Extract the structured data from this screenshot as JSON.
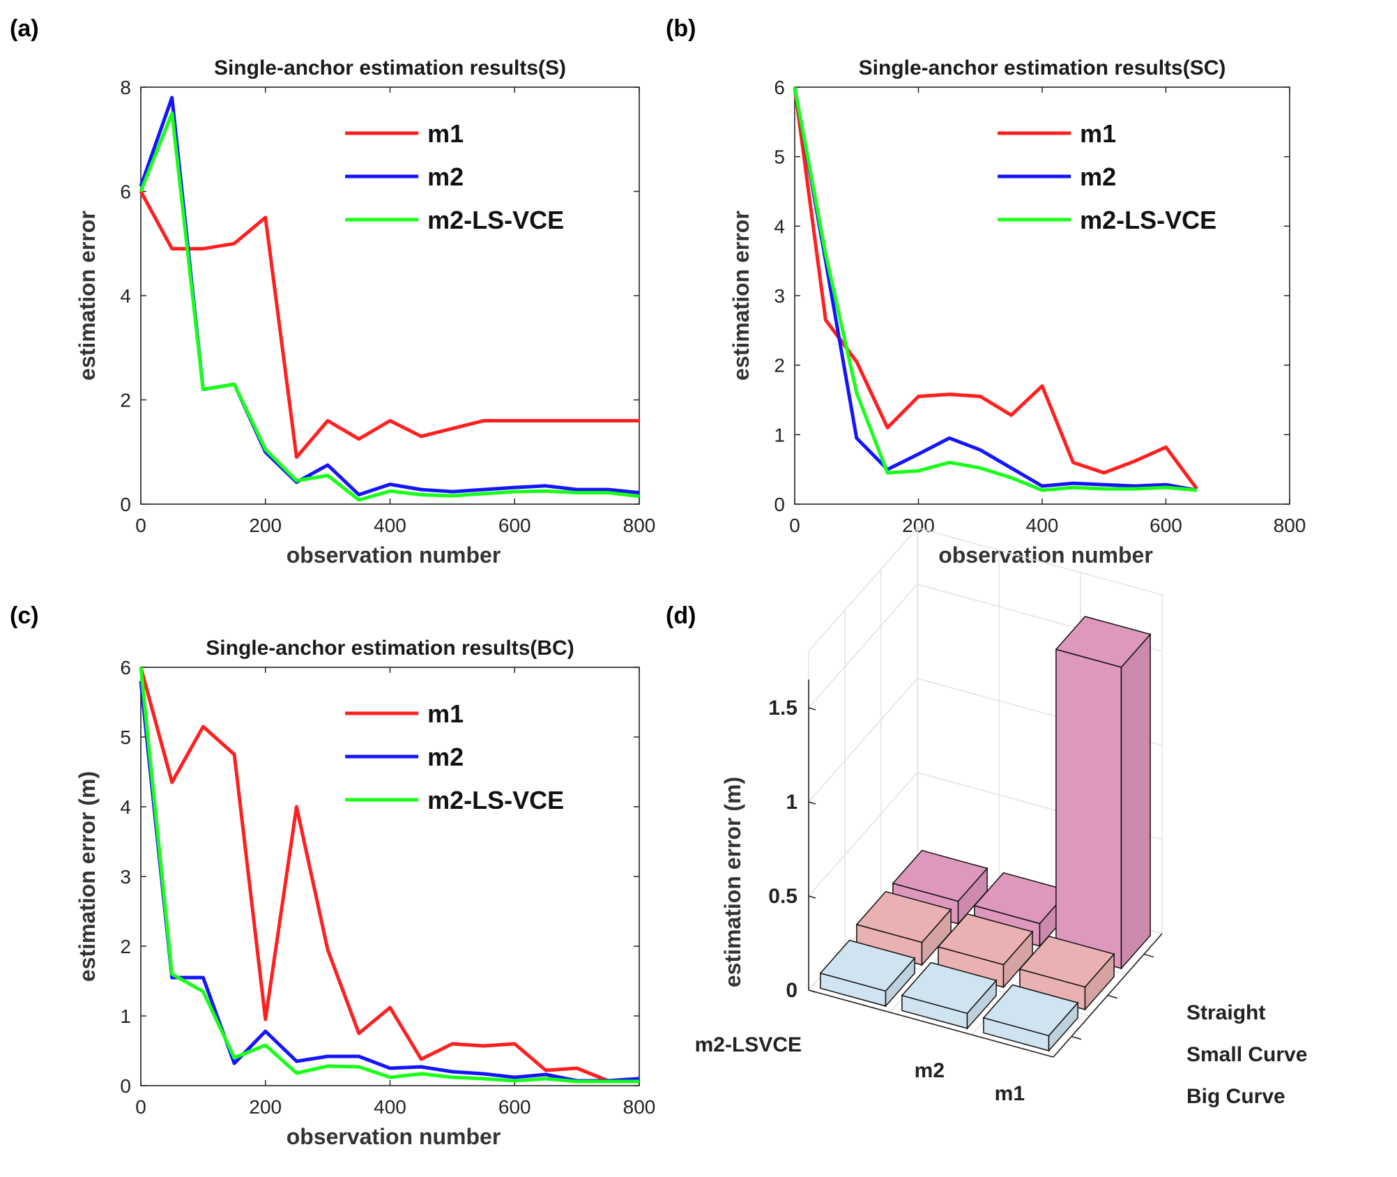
{
  "panels": {
    "a": "(a)",
    "b": "(b)",
    "c": "(c)",
    "d": "(d)"
  },
  "colors": {
    "m1": "#ff1f1f",
    "m2": "#1414ff",
    "m2_ls_vce": "#19ff19",
    "big_curve": "#cfe3f0",
    "small_curve": "#e9b1b1",
    "straight": "#de97bd"
  },
  "chart_data": [
    {
      "id": "a",
      "type": "line",
      "title": "Single-anchor estimation results(S)",
      "xlabel": "observation number",
      "ylabel": "estimation error",
      "xlim": [
        0,
        800
      ],
      "ylim": [
        0,
        8
      ],
      "xticks": [
        0,
        200,
        400,
        600,
        800
      ],
      "yticks": [
        0,
        2,
        4,
        6,
        8
      ],
      "legend_position": "top-right",
      "series": [
        {
          "name": "m1",
          "x": [
            0,
            50,
            100,
            150,
            200,
            250,
            300,
            350,
            400,
            450,
            500,
            550,
            600,
            650,
            700,
            750,
            800
          ],
          "values": [
            6.0,
            4.9,
            4.9,
            5.0,
            5.5,
            0.9,
            1.6,
            1.25,
            1.6,
            1.3,
            1.45,
            1.6,
            1.6,
            1.6,
            1.6,
            1.6,
            1.6
          ]
        },
        {
          "name": "m2",
          "x": [
            0,
            50,
            100,
            150,
            200,
            250,
            300,
            350,
            400,
            450,
            500,
            550,
            600,
            650,
            700,
            750,
            800
          ],
          "values": [
            6.1,
            7.8,
            2.2,
            2.3,
            1.0,
            0.42,
            0.75,
            0.18,
            0.38,
            0.28,
            0.24,
            0.28,
            0.32,
            0.35,
            0.28,
            0.28,
            0.22
          ]
        },
        {
          "name": "m2-LS-VCE",
          "x": [
            0,
            50,
            100,
            150,
            200,
            250,
            300,
            350,
            400,
            450,
            500,
            550,
            600,
            650,
            700,
            750,
            800
          ],
          "values": [
            6.0,
            7.5,
            2.2,
            2.3,
            1.05,
            0.45,
            0.55,
            0.08,
            0.25,
            0.18,
            0.16,
            0.2,
            0.24,
            0.25,
            0.22,
            0.22,
            0.15
          ]
        }
      ]
    },
    {
      "id": "b",
      "type": "line",
      "title": "Single-anchor estimation results(SC)",
      "xlabel": "observation number",
      "ylabel": "estimation error",
      "xlim": [
        0,
        800
      ],
      "ylim": [
        0,
        6
      ],
      "xticks": [
        0,
        200,
        400,
        600,
        800
      ],
      "yticks": [
        0,
        1,
        2,
        3,
        4,
        5,
        6
      ],
      "legend_position": "top-right",
      "series": [
        {
          "name": "m1",
          "x": [
            0,
            50,
            100,
            150,
            200,
            250,
            300,
            350,
            400,
            450,
            500,
            550,
            600,
            650
          ],
          "values": [
            6.0,
            2.65,
            2.05,
            1.1,
            1.55,
            1.58,
            1.55,
            1.28,
            1.7,
            0.6,
            0.45,
            0.62,
            0.82,
            0.22
          ]
        },
        {
          "name": "m2",
          "x": [
            0,
            50,
            100,
            150,
            200,
            250,
            300,
            350,
            400,
            450,
            500,
            550,
            600,
            650
          ],
          "values": [
            6.0,
            3.5,
            0.95,
            0.5,
            0.72,
            0.95,
            0.78,
            0.52,
            0.26,
            0.3,
            0.28,
            0.26,
            0.28,
            0.2
          ]
        },
        {
          "name": "m2-LS-VCE",
          "x": [
            0,
            50,
            100,
            150,
            200,
            250,
            300,
            350,
            400,
            450,
            500,
            550,
            600,
            650
          ],
          "values": [
            6.0,
            3.6,
            1.6,
            0.45,
            0.48,
            0.6,
            0.52,
            0.38,
            0.2,
            0.24,
            0.22,
            0.22,
            0.24,
            0.2
          ]
        }
      ]
    },
    {
      "id": "c",
      "type": "line",
      "title": "Single-anchor estimation results(BC)",
      "xlabel": "observation number",
      "ylabel": "estimation error (m)",
      "xlim": [
        0,
        800
      ],
      "ylim": [
        0,
        6
      ],
      "xticks": [
        0,
        200,
        400,
        600,
        800
      ],
      "yticks": [
        0,
        1,
        2,
        3,
        4,
        5,
        6
      ],
      "legend_position": "top-right",
      "series": [
        {
          "name": "m1",
          "x": [
            0,
            50,
            100,
            150,
            200,
            250,
            300,
            350,
            400,
            450,
            500,
            550,
            600,
            650,
            700,
            750,
            800
          ],
          "values": [
            6.0,
            4.35,
            5.15,
            4.75,
            0.95,
            4.0,
            1.95,
            0.75,
            1.12,
            0.38,
            0.6,
            0.57,
            0.6,
            0.22,
            0.25,
            0.07,
            0.1
          ]
        },
        {
          "name": "m2",
          "x": [
            0,
            50,
            100,
            150,
            200,
            250,
            300,
            350,
            400,
            450,
            500,
            550,
            600,
            650,
            700,
            750,
            800
          ],
          "values": [
            5.8,
            1.55,
            1.55,
            0.32,
            0.78,
            0.35,
            0.42,
            0.42,
            0.25,
            0.27,
            0.2,
            0.17,
            0.12,
            0.16,
            0.07,
            0.07,
            0.1
          ]
        },
        {
          "name": "m2-LS-VCE",
          "x": [
            0,
            50,
            100,
            150,
            200,
            250,
            300,
            350,
            400,
            450,
            500,
            550,
            600,
            650,
            700,
            750,
            800
          ],
          "values": [
            6.0,
            1.6,
            1.35,
            0.4,
            0.58,
            0.18,
            0.28,
            0.27,
            0.12,
            0.17,
            0.12,
            0.1,
            0.07,
            0.1,
            0.06,
            0.06,
            0.06
          ]
        }
      ]
    },
    {
      "id": "d",
      "type": "bar",
      "mode": "3d",
      "ylabel": "estimation error (m)",
      "zticks": [
        "0",
        "0.5",
        "1",
        "1.5"
      ],
      "zlim": [
        0,
        1.8
      ],
      "methods": [
        "m2-LSVCE",
        "m2",
        "m1"
      ],
      "scenarios": [
        "Big Curve",
        "Small Curve",
        "Straight"
      ],
      "values": {
        "Big Curve": [
          0.08,
          0.08,
          0.08
        ],
        "Small Curve": [
          0.12,
          0.12,
          0.12
        ],
        "Straight": [
          0.12,
          0.12,
          1.6
        ]
      }
    }
  ]
}
